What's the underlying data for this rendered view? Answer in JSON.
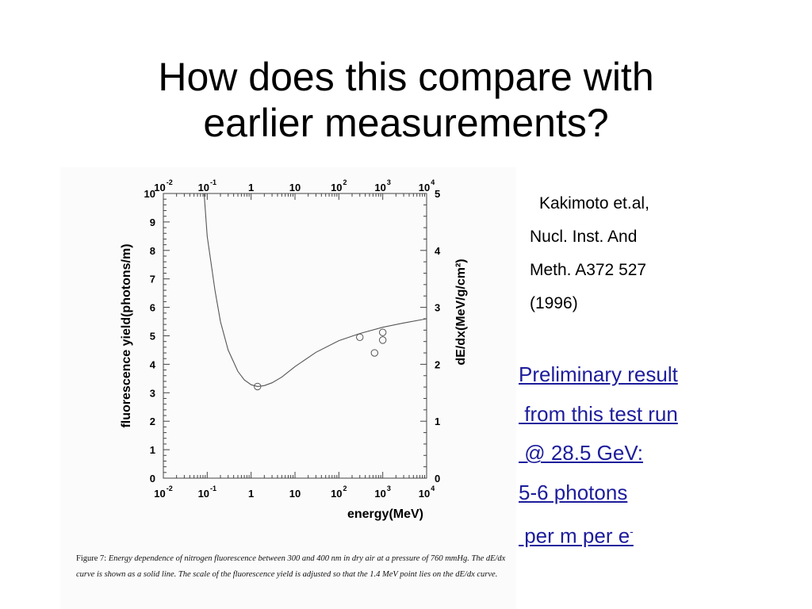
{
  "slide": {
    "title_line1": "How does this compare with",
    "title_line2": "earlier measurements?"
  },
  "citation": {
    "line1": "Kakimoto et.al,",
    "line2": "Nucl. Inst. And",
    "line3": "Meth. A372 527",
    "line4": "(1996)"
  },
  "links": {
    "line1": "Preliminary result",
    "line2": " from this test run",
    "line3": " @ 28.5 GeV:",
    "line4": "5-6 photons",
    "line5": " per m per e",
    "line5_sup": "-"
  },
  "caption": {
    "label": "Figure 7:",
    "text": "Energy dependence of nitrogen fluorescence between 300 and 400 nm in dry air at a pressure of 760 mmHg. The dE/dx curve is shown as a solid line. The scale of the fluorescence yield is adjusted so that the 1.4 MeV point lies on the dE/dx curve."
  },
  "colors": {
    "link": "#1d1d9c",
    "plot_line": "#555555",
    "plot_frame": "#444444"
  },
  "chart_data": {
    "type": "scatter",
    "xlabel": "energy(MeV)",
    "ylabel": "fluorescence yield(photons/m)",
    "y2label": "dE/dx(MeV/g/cm²)",
    "x_scale": "log",
    "xlim": [
      0.01,
      10000
    ],
    "ylim": [
      0,
      10
    ],
    "y2lim": [
      0,
      5
    ],
    "x_ticks": [
      {
        "base": "10",
        "exp": "-2"
      },
      {
        "base": "10",
        "exp": "-1"
      },
      {
        "base": "1",
        "exp": ""
      },
      {
        "base": "10",
        "exp": ""
      },
      {
        "base": "10",
        "exp": "2"
      },
      {
        "base": "10",
        "exp": "3"
      },
      {
        "base": "10",
        "exp": "4"
      }
    ],
    "y_ticks": [
      "0",
      "1",
      "2",
      "3",
      "4",
      "5",
      "6",
      "7",
      "8",
      "9",
      "10"
    ],
    "y2_ticks": [
      "0",
      "1",
      "2",
      "3",
      "4",
      "5"
    ],
    "series": [
      {
        "type": "line",
        "x": [
          0.085,
          0.1,
          0.15,
          0.2,
          0.3,
          0.5,
          0.7,
          1.0,
          1.4,
          2.0,
          3.0,
          5.0,
          10,
          30,
          100,
          300,
          1000,
          3000,
          10000
        ],
        "y": [
          10.0,
          8.5,
          6.6,
          5.5,
          4.5,
          3.75,
          3.45,
          3.28,
          3.22,
          3.25,
          3.35,
          3.55,
          3.92,
          4.42,
          4.83,
          5.08,
          5.3,
          5.45,
          5.6
        ]
      },
      {
        "type": "scatter",
        "x": [
          1.4,
          300,
          650,
          1000,
          1000
        ],
        "y": [
          3.22,
          4.95,
          4.4,
          5.12,
          4.85
        ]
      }
    ]
  }
}
